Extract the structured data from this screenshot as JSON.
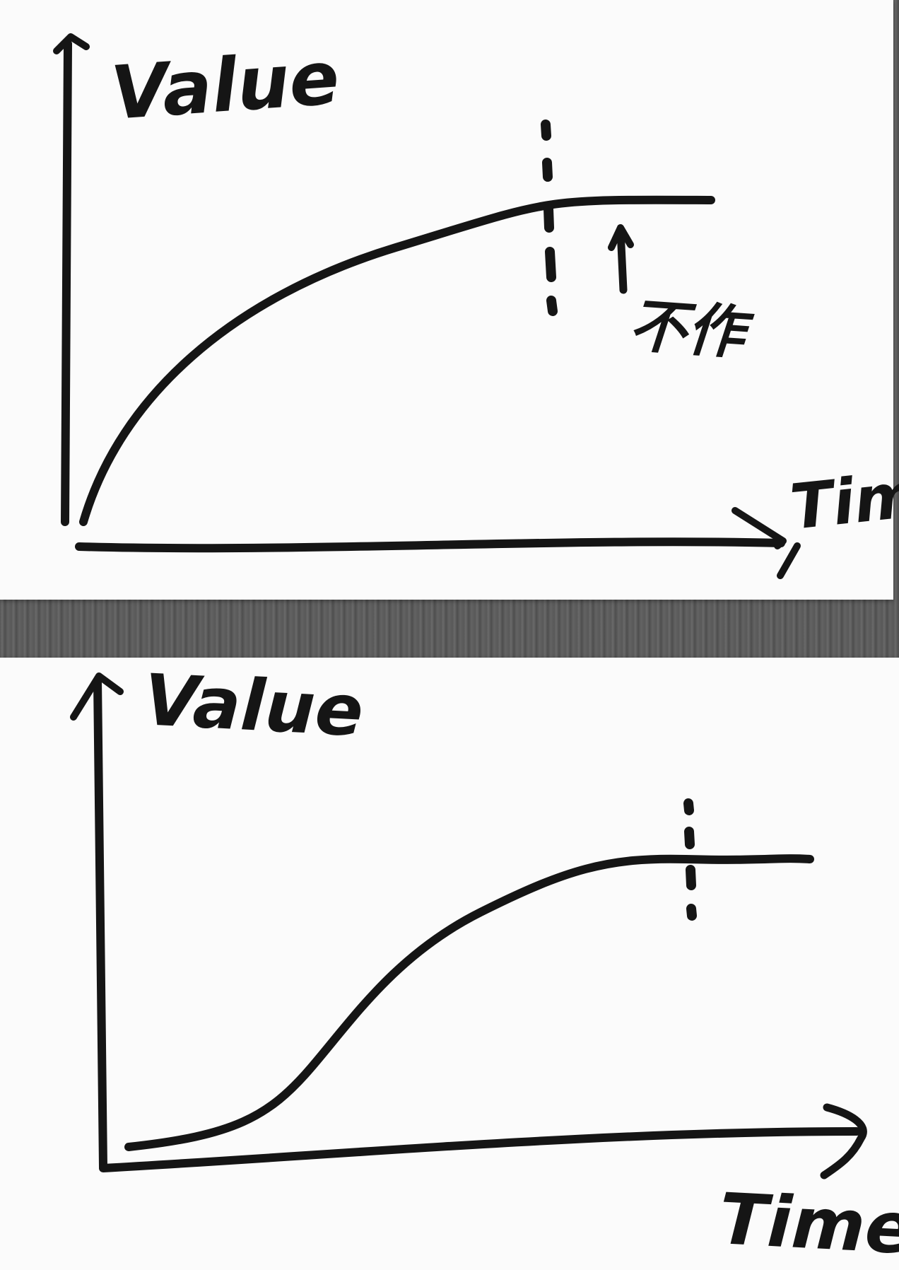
{
  "diagrams": [
    {
      "id": "top",
      "y_label": "Value",
      "x_label": "Tim",
      "annotation": "不作",
      "curve_type": "concave-saturating"
    },
    {
      "id": "bottom",
      "y_label": "Value",
      "x_label": "Time",
      "curve_type": "s-curve-saturating"
    }
  ],
  "colors": {
    "ink": "#151515",
    "paper": "#fbfbfb",
    "background": "#5a5a5a"
  }
}
